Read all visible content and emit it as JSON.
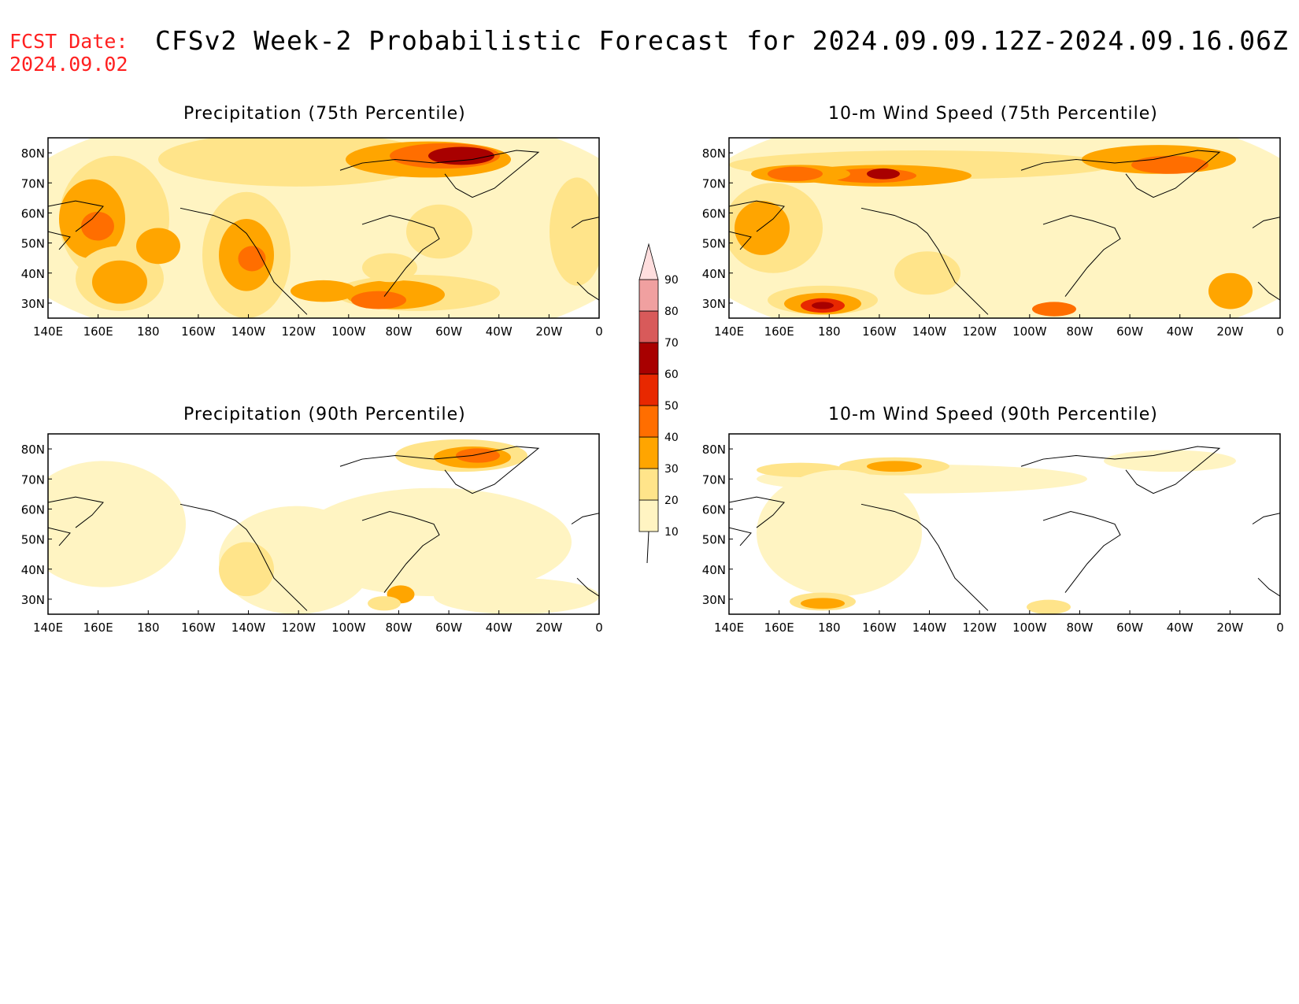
{
  "header": {
    "fcst_label": "FCST Date:",
    "fcst_date": "2024.09.02",
    "title": "CFSv2 Week-2 Probabilistic Forecast for 2024.09.09.12Z-2024.09.16.06Z"
  },
  "panels": [
    {
      "title": "Precipitation (75th Percentile)",
      "variable": "precipitation",
      "percentile": "75th"
    },
    {
      "title": "10-m Wind Speed (75th Percentile)",
      "variable": "wind",
      "percentile": "75th"
    },
    {
      "title": "Precipitation (90th Percentile)",
      "variable": "precipitation",
      "percentile": "90th"
    },
    {
      "title": "10-m Wind Speed (90th Percentile)",
      "variable": "wind",
      "percentile": "90th"
    }
  ],
  "axes": {
    "lon_labels": [
      "140E",
      "160E",
      "180",
      "160W",
      "140W",
      "120W",
      "100W",
      "80W",
      "60W",
      "40W",
      "20W",
      "0"
    ],
    "lat_labels": [
      "80N",
      "70N",
      "60N",
      "50N",
      "40N",
      "30N"
    ],
    "lon_range": [
      140,
      360
    ],
    "lat_range": [
      25,
      85
    ]
  },
  "colorbar": {
    "labels": [
      "10",
      "20",
      "30",
      "40",
      "50",
      "60",
      "70",
      "80",
      "90"
    ],
    "colors": [
      "#fff4c2",
      "#ffe48a",
      "#ffa500",
      "#ff6e00",
      "#e82800",
      "#a80000",
      "#d85a5a",
      "#f0a0a0",
      "#ffdede"
    ]
  }
}
